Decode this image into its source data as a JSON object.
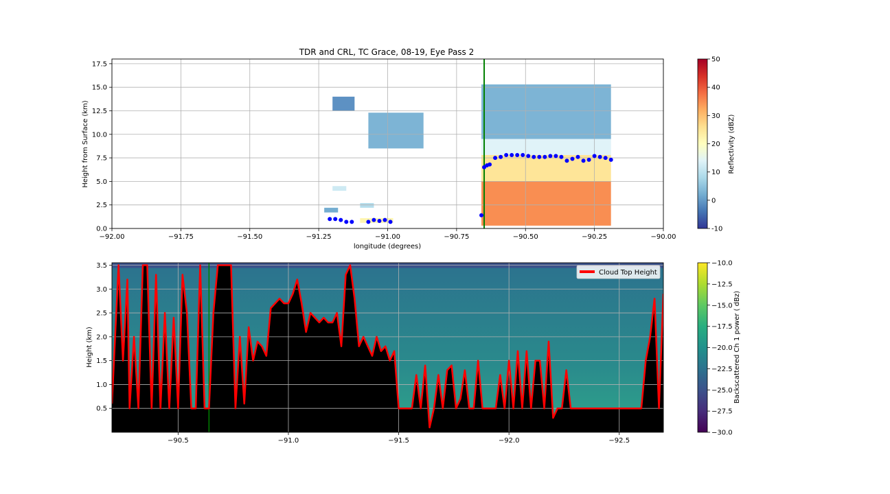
{
  "chart_data": [
    {
      "type": "scatter",
      "title": "TDR and CRL, TC Grace, 08-19, Eye Pass 2",
      "xlabel": "longitude (degrees)",
      "ylabel": "Height from Surface (km)",
      "xlim": [
        -92.0,
        -90.0
      ],
      "ylim": [
        0.0,
        18.0
      ],
      "xticks": [
        -92.0,
        -91.75,
        -91.5,
        -91.25,
        -91.0,
        -90.75,
        -90.5,
        -90.25,
        -90.0
      ],
      "xtick_labels": [
        "−92.00",
        "−91.75",
        "−91.50",
        "−91.25",
        "−91.00",
        "−90.75",
        "−90.50",
        "−90.25",
        "−90.00"
      ],
      "yticks": [
        0.0,
        2.5,
        5.0,
        7.5,
        10.0,
        12.5,
        15.0,
        17.5
      ],
      "ytick_labels": [
        "0.0",
        "2.5",
        "5.0",
        "7.5",
        "10.0",
        "12.5",
        "15.0",
        "17.5"
      ],
      "grid": true,
      "vertical_line": {
        "x": -90.65,
        "color": "#008000"
      },
      "colorbar": {
        "label": "Reflectivity (dBZ)",
        "range": [
          -10,
          50
        ],
        "ticks": [
          -10,
          0,
          10,
          20,
          30,
          40,
          50
        ],
        "colormap": "RdYlBu_r"
      },
      "reflectivity_regions": [
        {
          "x0": -90.66,
          "x1": -90.19,
          "y0": 9.5,
          "y1": 15.3,
          "dbz": 3
        },
        {
          "x0": -90.66,
          "x1": -90.19,
          "y0": 7.8,
          "y1": 9.5,
          "dbz": 14
        },
        {
          "x0": -90.66,
          "x1": -90.19,
          "y0": 5.0,
          "y1": 7.8,
          "dbz": 25
        },
        {
          "x0": -90.66,
          "x1": -90.19,
          "y0": 0.3,
          "y1": 5.0,
          "dbz": 35
        },
        {
          "x0": -91.07,
          "x1": -90.87,
          "y0": 8.5,
          "y1": 12.3,
          "dbz": 3
        },
        {
          "x0": -91.2,
          "x1": -91.12,
          "y0": 12.5,
          "y1": 14.0,
          "dbz": -1
        },
        {
          "x0": -91.2,
          "x1": -91.15,
          "y0": 4.0,
          "y1": 4.5,
          "dbz": 12
        },
        {
          "x0": -91.23,
          "x1": -91.18,
          "y0": 1.7,
          "y1": 2.2,
          "dbz": 2
        },
        {
          "x0": -91.1,
          "x1": -91.05,
          "y0": 2.2,
          "y1": 2.7,
          "dbz": 9
        },
        {
          "x0": -91.1,
          "x1": -90.98,
          "y0": 0.6,
          "y1": 1.1,
          "dbz": 22
        }
      ],
      "series": [
        {
          "color": "#0000ff",
          "x": [
            -91.21,
            -91.19,
            -91.17,
            -91.15,
            -91.13,
            -91.07,
            -91.05,
            -91.03,
            -91.01,
            -90.99,
            -90.66,
            -90.65,
            -90.64,
            -90.63,
            -90.61,
            -90.59,
            -90.57,
            -90.55,
            -90.53,
            -90.51,
            -90.49,
            -90.47,
            -90.45,
            -90.43,
            -90.41,
            -90.39,
            -90.37,
            -90.35,
            -90.33,
            -90.31,
            -90.29,
            -90.27,
            -90.25,
            -90.23,
            -90.21,
            -90.19
          ],
          "y": [
            1.0,
            1.0,
            0.9,
            0.7,
            0.7,
            0.7,
            0.9,
            0.8,
            0.9,
            0.7,
            1.4,
            6.5,
            6.7,
            6.8,
            7.5,
            7.6,
            7.8,
            7.8,
            7.8,
            7.8,
            7.7,
            7.6,
            7.6,
            7.6,
            7.7,
            7.7,
            7.6,
            7.2,
            7.4,
            7.6,
            7.2,
            7.3,
            7.7,
            7.6,
            7.5,
            7.3
          ]
        }
      ]
    },
    {
      "type": "line",
      "xlabel": "",
      "ylabel": "Height (km)",
      "xlim": [
        -90.2,
        -92.7
      ],
      "ylim": [
        0.0,
        3.55
      ],
      "xticks": [
        -90.5,
        -91.0,
        -91.5,
        -92.0,
        -92.5
      ],
      "xtick_labels": [
        "−90.5",
        "−91.0",
        "−91.5",
        "−92.0",
        "−92.5"
      ],
      "yticks": [
        0.5,
        1.0,
        1.5,
        2.0,
        2.5,
        3.0,
        3.5
      ],
      "ytick_labels": [
        "0.5",
        "1.0",
        "1.5",
        "2.0",
        "2.5",
        "3.0",
        "3.5"
      ],
      "grid": true,
      "legend": {
        "position": "top-right",
        "entries": [
          "Cloud Top Height"
        ]
      },
      "vertical_line": {
        "x": -90.64,
        "color": "#008000"
      },
      "colorbar": {
        "label": "Backscattered Ch 1 power ( dBz)",
        "range": [
          -30,
          -10
        ],
        "ticks": [
          -30.0,
          -27.5,
          -25.0,
          -22.5,
          -20.0,
          -17.5,
          -15.0,
          -12.5,
          -10.0
        ],
        "tick_labels": [
          "−30.0",
          "−27.5",
          "−25.0",
          "−22.5",
          "−20.0",
          "−17.5",
          "−15.0",
          "−12.5",
          "−10.0"
        ],
        "colormap": "viridis"
      },
      "series": [
        {
          "name": "Cloud Top Height",
          "color": "#ff0000",
          "x": [
            -90.2,
            -90.23,
            -90.25,
            -90.27,
            -90.28,
            -90.3,
            -90.32,
            -90.34,
            -90.36,
            -90.38,
            -90.4,
            -90.42,
            -90.44,
            -90.46,
            -90.48,
            -90.5,
            -90.52,
            -90.54,
            -90.56,
            -90.58,
            -90.6,
            -90.62,
            -90.64,
            -90.66,
            -90.68,
            -90.7,
            -90.72,
            -90.74,
            -90.76,
            -90.78,
            -90.8,
            -90.82,
            -90.84,
            -90.86,
            -90.88,
            -90.9,
            -90.92,
            -90.94,
            -90.96,
            -90.98,
            -91.0,
            -91.02,
            -91.04,
            -91.06,
            -91.08,
            -91.1,
            -91.12,
            -91.14,
            -91.16,
            -91.18,
            -91.2,
            -91.22,
            -91.24,
            -91.26,
            -91.28,
            -91.3,
            -91.32,
            -91.34,
            -91.36,
            -91.38,
            -91.4,
            -91.42,
            -91.44,
            -91.46,
            -91.48,
            -91.5,
            -91.52,
            -91.54,
            -91.56,
            -91.58,
            -91.6,
            -91.62,
            -91.64,
            -91.66,
            -91.68,
            -91.7,
            -91.72,
            -91.74,
            -91.76,
            -91.78,
            -91.8,
            -91.82,
            -91.84,
            -91.86,
            -91.88,
            -91.9,
            -91.92,
            -91.94,
            -91.96,
            -91.98,
            -92.0,
            -92.02,
            -92.04,
            -92.06,
            -92.08,
            -92.1,
            -92.12,
            -92.14,
            -92.16,
            -92.18,
            -92.2,
            -92.22,
            -92.24,
            -92.26,
            -92.28,
            -92.3,
            -92.32,
            -92.34,
            -92.36,
            -92.38,
            -92.4,
            -92.42,
            -92.44,
            -92.46,
            -92.48,
            -92.5,
            -92.52,
            -92.54,
            -92.56,
            -92.58,
            -92.6,
            -92.62,
            -92.64,
            -92.66,
            -92.68,
            -92.7
          ],
          "y": [
            0.6,
            3.5,
            1.5,
            3.2,
            0.5,
            2.0,
            0.5,
            3.5,
            3.5,
            0.5,
            3.3,
            0.5,
            2.5,
            0.5,
            2.4,
            0.5,
            3.3,
            2.5,
            0.5,
            0.5,
            3.5,
            0.5,
            0.5,
            2.5,
            3.5,
            3.5,
            3.5,
            3.5,
            0.5,
            2.0,
            0.6,
            2.2,
            1.5,
            1.9,
            1.8,
            1.6,
            2.6,
            2.7,
            2.8,
            2.7,
            2.7,
            2.9,
            3.2,
            2.7,
            2.1,
            2.5,
            2.4,
            2.3,
            2.4,
            2.3,
            2.3,
            2.5,
            1.8,
            3.3,
            3.5,
            2.8,
            1.8,
            2.0,
            1.8,
            1.6,
            2.0,
            1.7,
            1.8,
            1.5,
            1.7,
            0.5,
            0.5,
            0.5,
            0.5,
            1.2,
            0.5,
            1.4,
            0.1,
            0.5,
            1.2,
            0.5,
            1.3,
            1.4,
            0.5,
            0.7,
            1.3,
            0.5,
            0.5,
            1.5,
            0.5,
            0.5,
            0.5,
            0.5,
            1.2,
            0.5,
            1.5,
            0.5,
            1.7,
            0.5,
            1.7,
            0.5,
            1.5,
            1.5,
            0.5,
            1.9,
            0.3,
            0.5,
            0.5,
            1.3,
            0.5,
            0.5,
            0.5,
            0.5,
            0.5,
            0.5,
            0.5,
            0.5,
            0.5,
            0.5,
            0.5,
            0.5,
            0.5,
            0.5,
            0.5,
            0.5,
            0.5,
            1.5,
            2.0,
            2.8,
            0.5,
            2.9
          ]
        }
      ]
    }
  ]
}
